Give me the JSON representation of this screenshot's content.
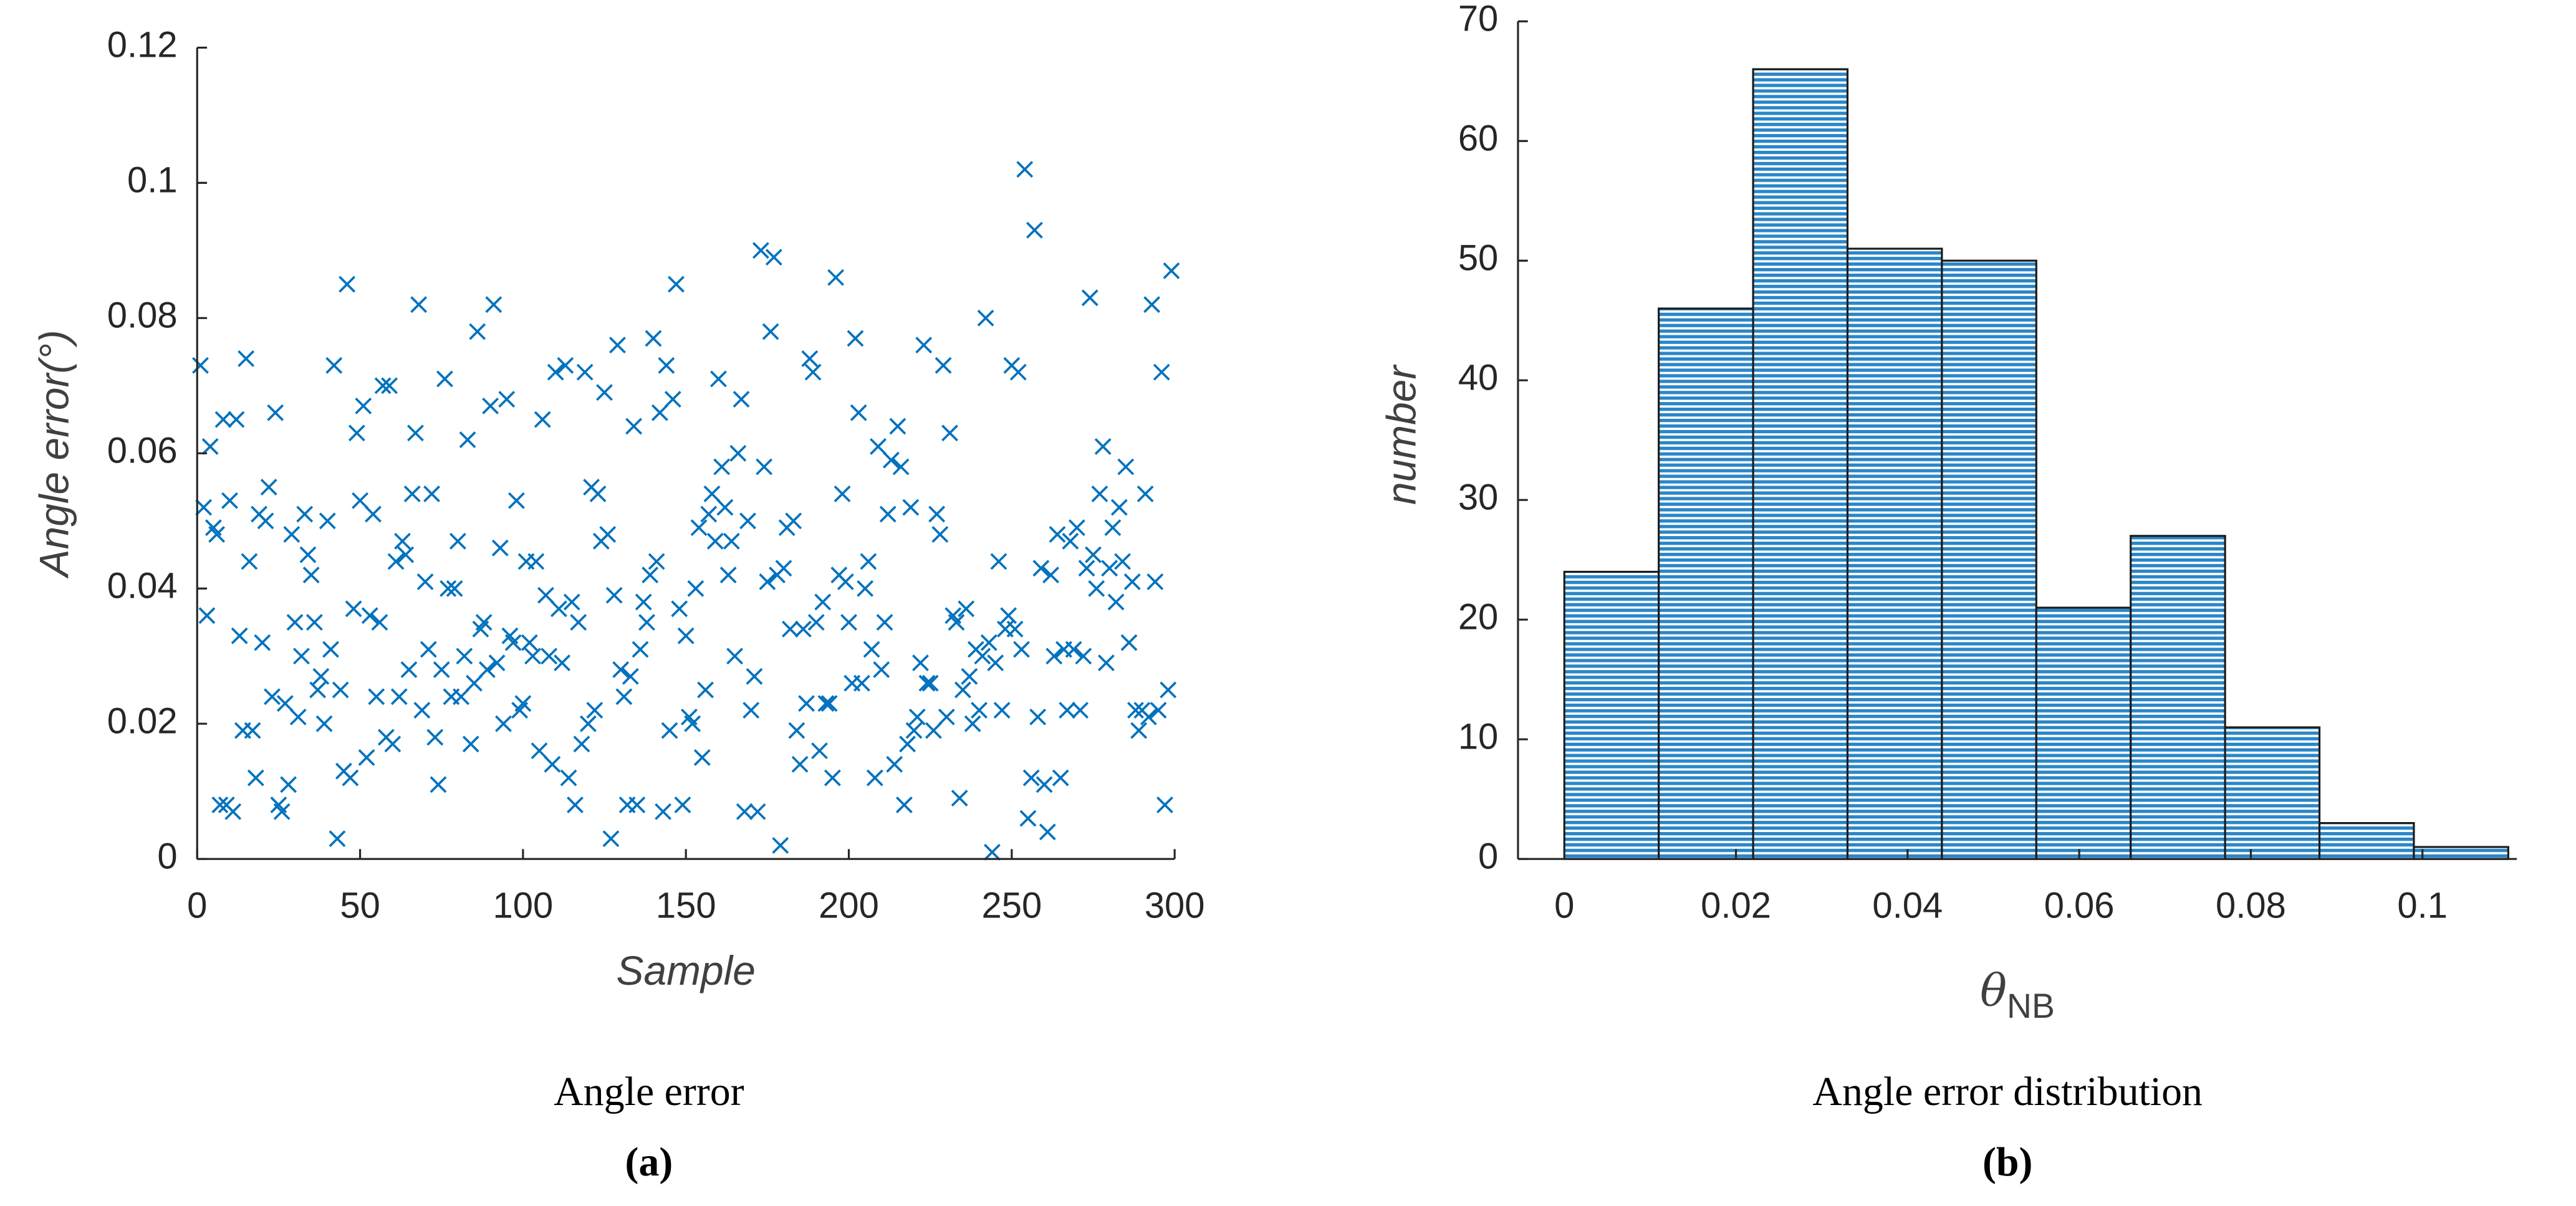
{
  "chart_data": [
    {
      "type": "scatter",
      "xlabel": "Sample",
      "ylabel": "Angle error(°)",
      "caption": "Angle error",
      "label": "(a)",
      "color": "#0072bd",
      "xlim": [
        0,
        300
      ],
      "xticks": [
        0,
        50,
        100,
        150,
        200,
        250,
        300
      ],
      "ylim": [
        0,
        0.12
      ],
      "yticks": [
        0,
        0.02,
        0.04,
        0.06,
        0.08,
        0.1,
        0.12
      ],
      "x": [
        1,
        2,
        3,
        4,
        5,
        6,
        7,
        8,
        9,
        10,
        11,
        12,
        13,
        14,
        15,
        16,
        17,
        18,
        19,
        20,
        21,
        22,
        23,
        24,
        25,
        26,
        27,
        28,
        29,
        30,
        31,
        32,
        33,
        34,
        35,
        36,
        37,
        38,
        39,
        40,
        41,
        42,
        43,
        44,
        45,
        46,
        47,
        48,
        49,
        50,
        51,
        52,
        53,
        54,
        55,
        56,
        57,
        58,
        59,
        60,
        61,
        62,
        63,
        64,
        65,
        66,
        67,
        68,
        69,
        70,
        71,
        72,
        73,
        74,
        75,
        76,
        77,
        78,
        79,
        80,
        81,
        82,
        83,
        84,
        85,
        86,
        87,
        88,
        89,
        90,
        91,
        92,
        93,
        94,
        95,
        96,
        97,
        98,
        99,
        100,
        101,
        102,
        103,
        104,
        105,
        106,
        107,
        108,
        109,
        110,
        111,
        112,
        113,
        114,
        115,
        116,
        117,
        118,
        119,
        120,
        121,
        122,
        123,
        124,
        125,
        126,
        127,
        128,
        129,
        130,
        131,
        132,
        133,
        134,
        135,
        136,
        137,
        138,
        139,
        140,
        141,
        142,
        143,
        144,
        145,
        146,
        147,
        148,
        149,
        150,
        151,
        152,
        153,
        154,
        155,
        156,
        157,
        158,
        159,
        160,
        161,
        162,
        163,
        164,
        165,
        166,
        167,
        168,
        169,
        170,
        171,
        172,
        173,
        174,
        175,
        176,
        177,
        178,
        179,
        180,
        181,
        182,
        183,
        184,
        185,
        186,
        187,
        188,
        189,
        190,
        191,
        192,
        193,
        194,
        195,
        196,
        197,
        198,
        199,
        200,
        201,
        202,
        203,
        204,
        205,
        206,
        207,
        208,
        209,
        210,
        211,
        212,
        213,
        214,
        215,
        216,
        217,
        218,
        219,
        220,
        221,
        222,
        223,
        224,
        225,
        226,
        227,
        228,
        229,
        230,
        231,
        232,
        233,
        234,
        235,
        236,
        237,
        238,
        239,
        240,
        241,
        242,
        243,
        244,
        245,
        246,
        247,
        248,
        249,
        250,
        251,
        252,
        253,
        254,
        255,
        256,
        257,
        258,
        259,
        260,
        261,
        262,
        263,
        264,
        265,
        266,
        267,
        268,
        269,
        270,
        271,
        272,
        273,
        274,
        275,
        276,
        277,
        278,
        279,
        280,
        281,
        282,
        283,
        284,
        285,
        286,
        287,
        288,
        289,
        290,
        291,
        292,
        293,
        294,
        295,
        296,
        297,
        298,
        299
      ],
      "values": [
        0.073,
        0.052,
        0.036,
        0.061,
        0.049,
        0.048,
        0.008,
        0.065,
        0.008,
        0.053,
        0.007,
        0.065,
        0.033,
        0.019,
        0.074,
        0.044,
        0.019,
        0.012,
        0.051,
        0.032,
        0.05,
        0.055,
        0.024,
        0.066,
        0.008,
        0.007,
        0.023,
        0.011,
        0.048,
        0.035,
        0.021,
        0.03,
        0.051,
        0.045,
        0.042,
        0.035,
        0.025,
        0.027,
        0.02,
        0.05,
        0.031,
        0.073,
        0.003,
        0.025,
        0.013,
        0.085,
        0.012,
        0.037,
        0.063,
        0.053,
        0.067,
        0.015,
        0.036,
        0.051,
        0.024,
        0.035,
        0.07,
        0.018,
        0.07,
        0.017,
        0.044,
        0.024,
        0.047,
        0.045,
        0.028,
        0.054,
        0.063,
        0.082,
        0.022,
        0.041,
        0.031,
        0.054,
        0.018,
        0.011,
        0.028,
        0.071,
        0.04,
        0.024,
        0.04,
        0.047,
        0.024,
        0.03,
        0.062,
        0.017,
        0.026,
        0.078,
        0.034,
        0.035,
        0.028,
        0.067,
        0.082,
        0.029,
        0.046,
        0.02,
        0.068,
        0.033,
        0.032,
        0.053,
        0.022,
        0.023,
        0.044,
        0.032,
        0.03,
        0.044,
        0.016,
        0.065,
        0.039,
        0.03,
        0.014,
        0.072,
        0.037,
        0.029,
        0.073,
        0.012,
        0.038,
        0.008,
        0.035,
        0.017,
        0.072,
        0.02,
        0.055,
        0.022,
        0.054,
        0.047,
        0.069,
        0.048,
        0.003,
        0.039,
        0.076,
        0.028,
        0.024,
        0.008,
        0.027,
        0.064,
        0.008,
        0.031,
        0.038,
        0.035,
        0.042,
        0.077,
        0.044,
        0.066,
        0.007,
        0.073,
        0.019,
        0.068,
        0.085,
        0.037,
        0.008,
        0.033,
        0.021,
        0.02,
        0.04,
        0.049,
        0.015,
        0.025,
        0.051,
        0.054,
        0.047,
        0.071,
        0.058,
        0.052,
        0.042,
        0.047,
        0.03,
        0.06,
        0.068,
        0.007,
        0.05,
        0.022,
        0.027,
        0.007,
        0.09,
        0.058,
        0.041,
        0.078,
        0.089,
        0.042,
        0.002,
        0.043,
        0.049,
        0.034,
        0.05,
        0.019,
        0.014,
        0.034,
        0.023,
        0.074,
        0.072,
        0.035,
        0.016,
        0.038,
        0.023,
        0.023,
        0.012,
        0.086,
        0.042,
        0.054,
        0.041,
        0.035,
        0.026,
        0.077,
        0.066,
        0.026,
        0.04,
        0.044,
        0.031,
        0.012,
        0.061,
        0.028,
        0.035,
        0.051,
        0.059,
        0.014,
        0.064,
        0.058,
        0.008,
        0.017,
        0.052,
        0.019,
        0.021,
        0.029,
        0.076,
        0.026,
        0.026,
        0.019,
        0.051,
        0.048,
        0.073,
        0.021,
        0.063,
        0.036,
        0.035,
        0.009,
        0.025,
        0.037,
        0.027,
        0.02,
        0.031,
        0.022,
        0.03,
        0.08,
        0.032,
        0.001,
        0.029,
        0.044,
        0.022,
        0.034,
        0.036,
        0.073,
        0.034,
        0.072,
        0.031,
        0.102,
        0.006,
        0.012,
        0.093,
        0.021,
        0.043,
        0.011,
        0.004,
        0.042,
        0.03,
        0.048,
        0.012,
        0.031,
        0.022,
        0.047,
        0.031,
        0.049,
        0.022,
        0.03,
        0.043,
        0.083,
        0.045,
        0.04,
        0.054,
        0.061,
        0.029,
        0.043,
        0.049,
        0.038,
        0.052,
        0.044,
        0.058,
        0.032,
        0.041,
        0.022,
        0.019,
        0.022,
        0.054,
        0.021,
        0.082,
        0.041,
        0.022,
        0.072,
        0.008,
        0.025,
        0.087
      ]
    },
    {
      "type": "histogram",
      "xlabel": {
        "symbol": "θ",
        "subscript": "NB"
      },
      "ylabel": "number",
      "caption": "Angle error distribution",
      "label": "(b)",
      "color": "#0072bd",
      "xlim": [
        -0.0054,
        0.111
      ],
      "xticks": [
        0,
        0.02,
        0.04,
        0.06,
        0.08,
        0.1
      ],
      "ylim": [
        0,
        70
      ],
      "yticks": [
        0,
        10,
        20,
        30,
        40,
        50,
        60,
        70
      ],
      "bins": [
        0,
        0.011,
        0.022,
        0.033,
        0.044,
        0.055,
        0.066,
        0.077,
        0.088,
        0.099,
        0.11
      ],
      "values": [
        24,
        46,
        66,
        51,
        50,
        21,
        27,
        11,
        3,
        1
      ]
    }
  ]
}
